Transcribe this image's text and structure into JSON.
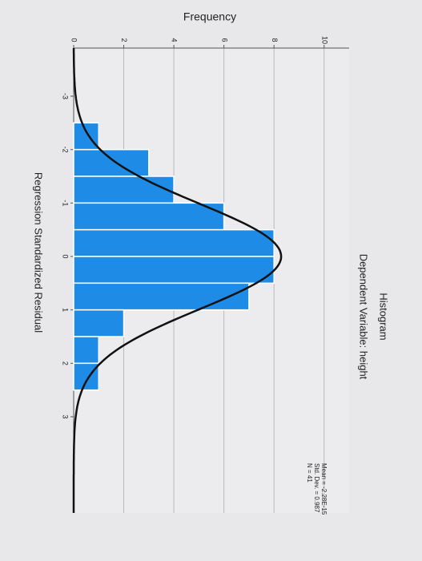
{
  "chart_data": {
    "type": "histogram",
    "title": "Histogram",
    "subtitle": "Dependent Variable: height",
    "x_label": "Regression Standardized Residual",
    "y_label": "Frequency",
    "bins": [
      -2.5,
      -2,
      -1.5,
      -1,
      -0.5,
      0,
      0.5,
      1,
      1.5,
      2,
      2.5
    ],
    "values": [
      1,
      3,
      4,
      6,
      8,
      8,
      7,
      2,
      1,
      1
    ],
    "color": "#1e8ce6",
    "xlim": [
      -3.9,
      4.8
    ],
    "xticks": [
      -3,
      -2,
      -1,
      0,
      1,
      2,
      3
    ],
    "ylim": [
      0,
      11
    ],
    "yticks": [
      0,
      2,
      4,
      6,
      8,
      10
    ],
    "grid": true,
    "normal_curve": {
      "mean": -2.28e-15,
      "sd": 0.987,
      "n": 41
    },
    "stats": [
      "Mean = -2.28E-15",
      "Std. Dev. = 0.987",
      "N = 41"
    ]
  }
}
